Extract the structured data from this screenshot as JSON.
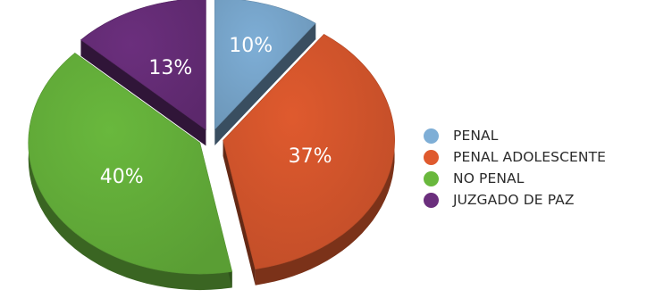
{
  "chart_data": {
    "type": "pie",
    "title": "",
    "categories": [
      "PENAL",
      "PENAL ADOLESCENTE",
      "NO PENAL",
      "JUZGADO DE PAZ"
    ],
    "values": [
      10,
      37,
      40,
      13
    ],
    "data_labels": [
      "10%",
      "37%",
      "40%",
      "13%"
    ],
    "colors": [
      "#7eaed6",
      "#df5a2e",
      "#69b83d",
      "#6b2f7d"
    ],
    "exploded": true,
    "style": "3d",
    "legend_placement": "right"
  }
}
